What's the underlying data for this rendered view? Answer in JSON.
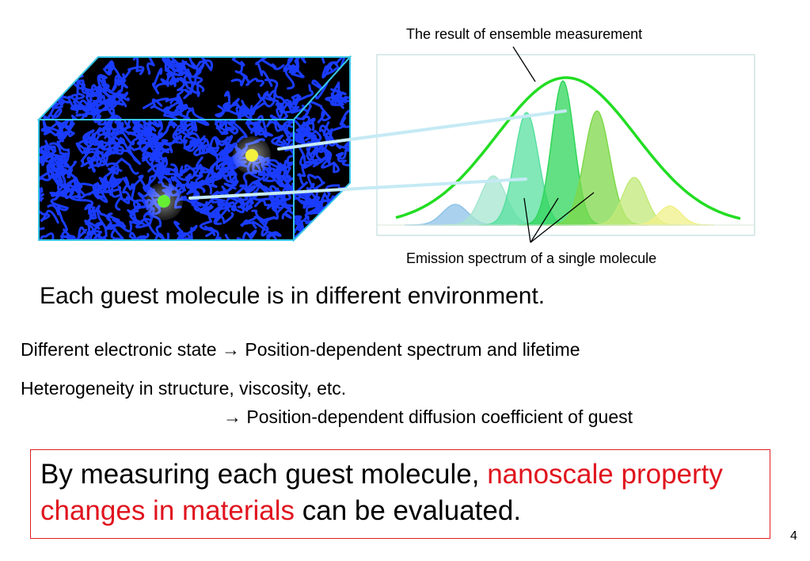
{
  "figure": {
    "ensemble_label": "The result of ensemble measurement",
    "single_label": "Emission spectrum of a single molecule",
    "colors": {
      "polymer": "#1a3cff",
      "block_edge": "#36c4e6",
      "ensemble_curve": "#22dd22",
      "molecule_yellow": "#f4f040",
      "molecule_green": "#66ee33"
    }
  },
  "text": {
    "headline": "Each guest molecule is in different environment.",
    "line1": "Different electronic state →  Position-dependent spectrum and lifetime",
    "line2": "Heterogeneity in structure, viscosity, etc.",
    "line3": "→  Position-dependent diffusion coefficient of guest"
  },
  "callout": {
    "part1": "By measuring each guest molecule, ",
    "part2_red": "nanoscale property changes in materials",
    "part3": " can be evaluated."
  },
  "page_number": "4"
}
